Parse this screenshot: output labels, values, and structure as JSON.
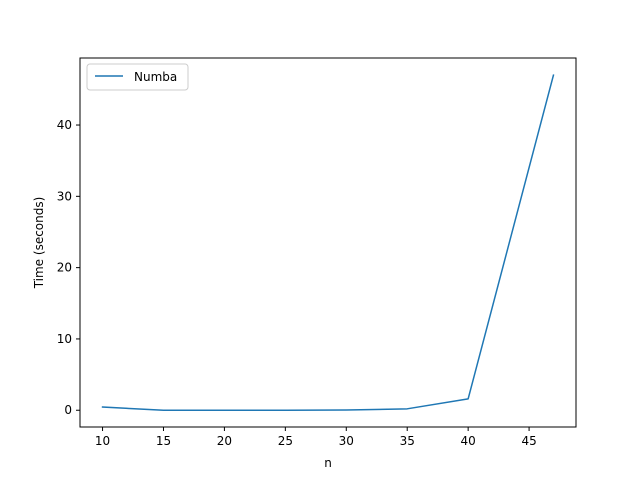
{
  "chart_data": {
    "type": "line",
    "xlabel": "n",
    "ylabel": "Time (seconds)",
    "xlim": [
      8.15,
      48.85
    ],
    "ylim": [
      -2.35,
      49.4
    ],
    "x_ticks": [
      10,
      15,
      20,
      25,
      30,
      35,
      40,
      45
    ],
    "y_ticks": [
      0,
      10,
      20,
      30,
      40
    ],
    "grid": false,
    "legend_position": "upper left",
    "series": [
      {
        "name": "Numba",
        "color": "#1f77b4",
        "x": [
          10,
          15,
          20,
          25,
          30,
          35,
          40,
          47
        ],
        "y": [
          0.45,
          0.0,
          0.0,
          0.0,
          0.03,
          0.2,
          1.6,
          47.0
        ]
      }
    ]
  }
}
